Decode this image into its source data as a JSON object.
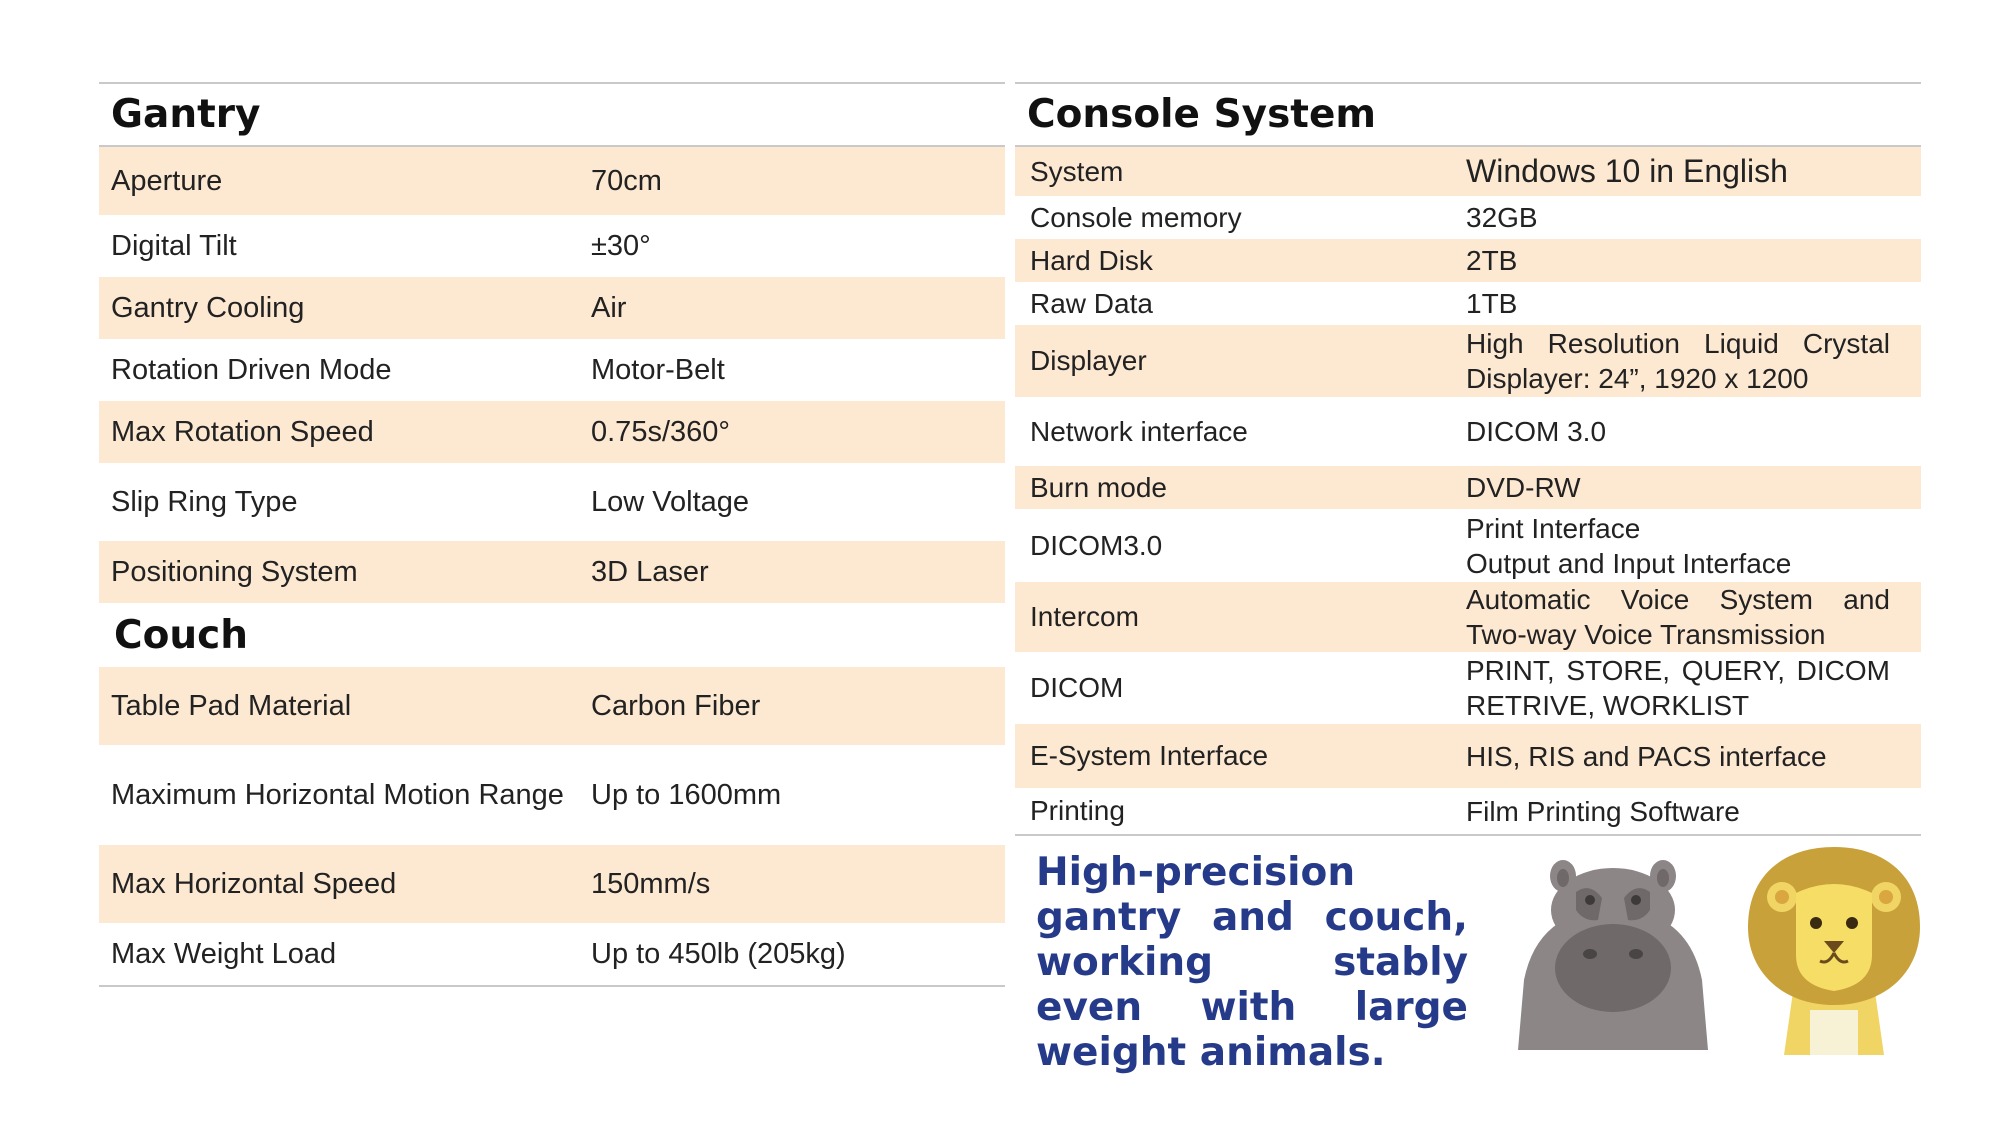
{
  "gantry": {
    "title": "Gantry",
    "rows": [
      {
        "label": "Aperture",
        "value": "70cm"
      },
      {
        "label": "Digital Tilt",
        "value": "±30°"
      },
      {
        "label": "Gantry Cooling",
        "value": "Air"
      },
      {
        "label": "Rotation Driven Mode",
        "value": "Motor-Belt"
      },
      {
        "label": "Max Rotation Speed",
        "value": "0.75s/360°"
      },
      {
        "label": "Slip Ring Type",
        "value": "Low Voltage"
      },
      {
        "label": "Positioning System",
        "value": "3D Laser"
      }
    ]
  },
  "couch": {
    "title": "Couch",
    "rows": [
      {
        "label": "Table Pad Material",
        "value": "Carbon Fiber"
      },
      {
        "label": "Maximum Horizontal Motion Range",
        "value": "Up to 1600mm"
      },
      {
        "label": "Max Horizontal Speed",
        "value": "150mm/s"
      },
      {
        "label": "Max Weight Load",
        "value": "Up to 450lb (205kg)"
      }
    ]
  },
  "console": {
    "title": "Console System",
    "rows": [
      {
        "label": "System",
        "value": "Windows 10 in English"
      },
      {
        "label": "Console memory",
        "value": "32GB"
      },
      {
        "label": "Hard Disk",
        "value": "2TB"
      },
      {
        "label": "Raw Data",
        "value": "1TB"
      },
      {
        "label": "Displayer",
        "value": "High Resolution Liquid Crystal Displayer: 24”, 1920 x 1200"
      },
      {
        "label": "Network interface",
        "value": "DICOM 3.0"
      },
      {
        "label": "Burn mode",
        "value": "DVD-RW"
      },
      {
        "label": "DICOM3.0",
        "value_lines": [
          "Print Interface",
          "Output and Input Interface"
        ]
      },
      {
        "label": "Intercom",
        "value": "Automatic Voice System and Two-way Voice Transmission"
      },
      {
        "label": "DICOM",
        "value": "PRINT, STORE, QUERY, DICOM RETRIVE, WORKLIST"
      },
      {
        "label": "E-System Interface",
        "value": "HIS, RIS and PACS interface"
      },
      {
        "label": "Printing",
        "value": "Film Printing Software"
      }
    ]
  },
  "tagline": "High-precision gantry and couch, working stably even with large weight animals.",
  "illustrations": {
    "hippo_icon": "hippo-icon",
    "lion_icon": "lion-icon",
    "colors": {
      "row_shade": "#fde9d2",
      "tagline": "#263a8a",
      "hippo": "#8d8686",
      "lion_mane": "#c9a13a",
      "lion_face": "#f6dd65"
    }
  }
}
